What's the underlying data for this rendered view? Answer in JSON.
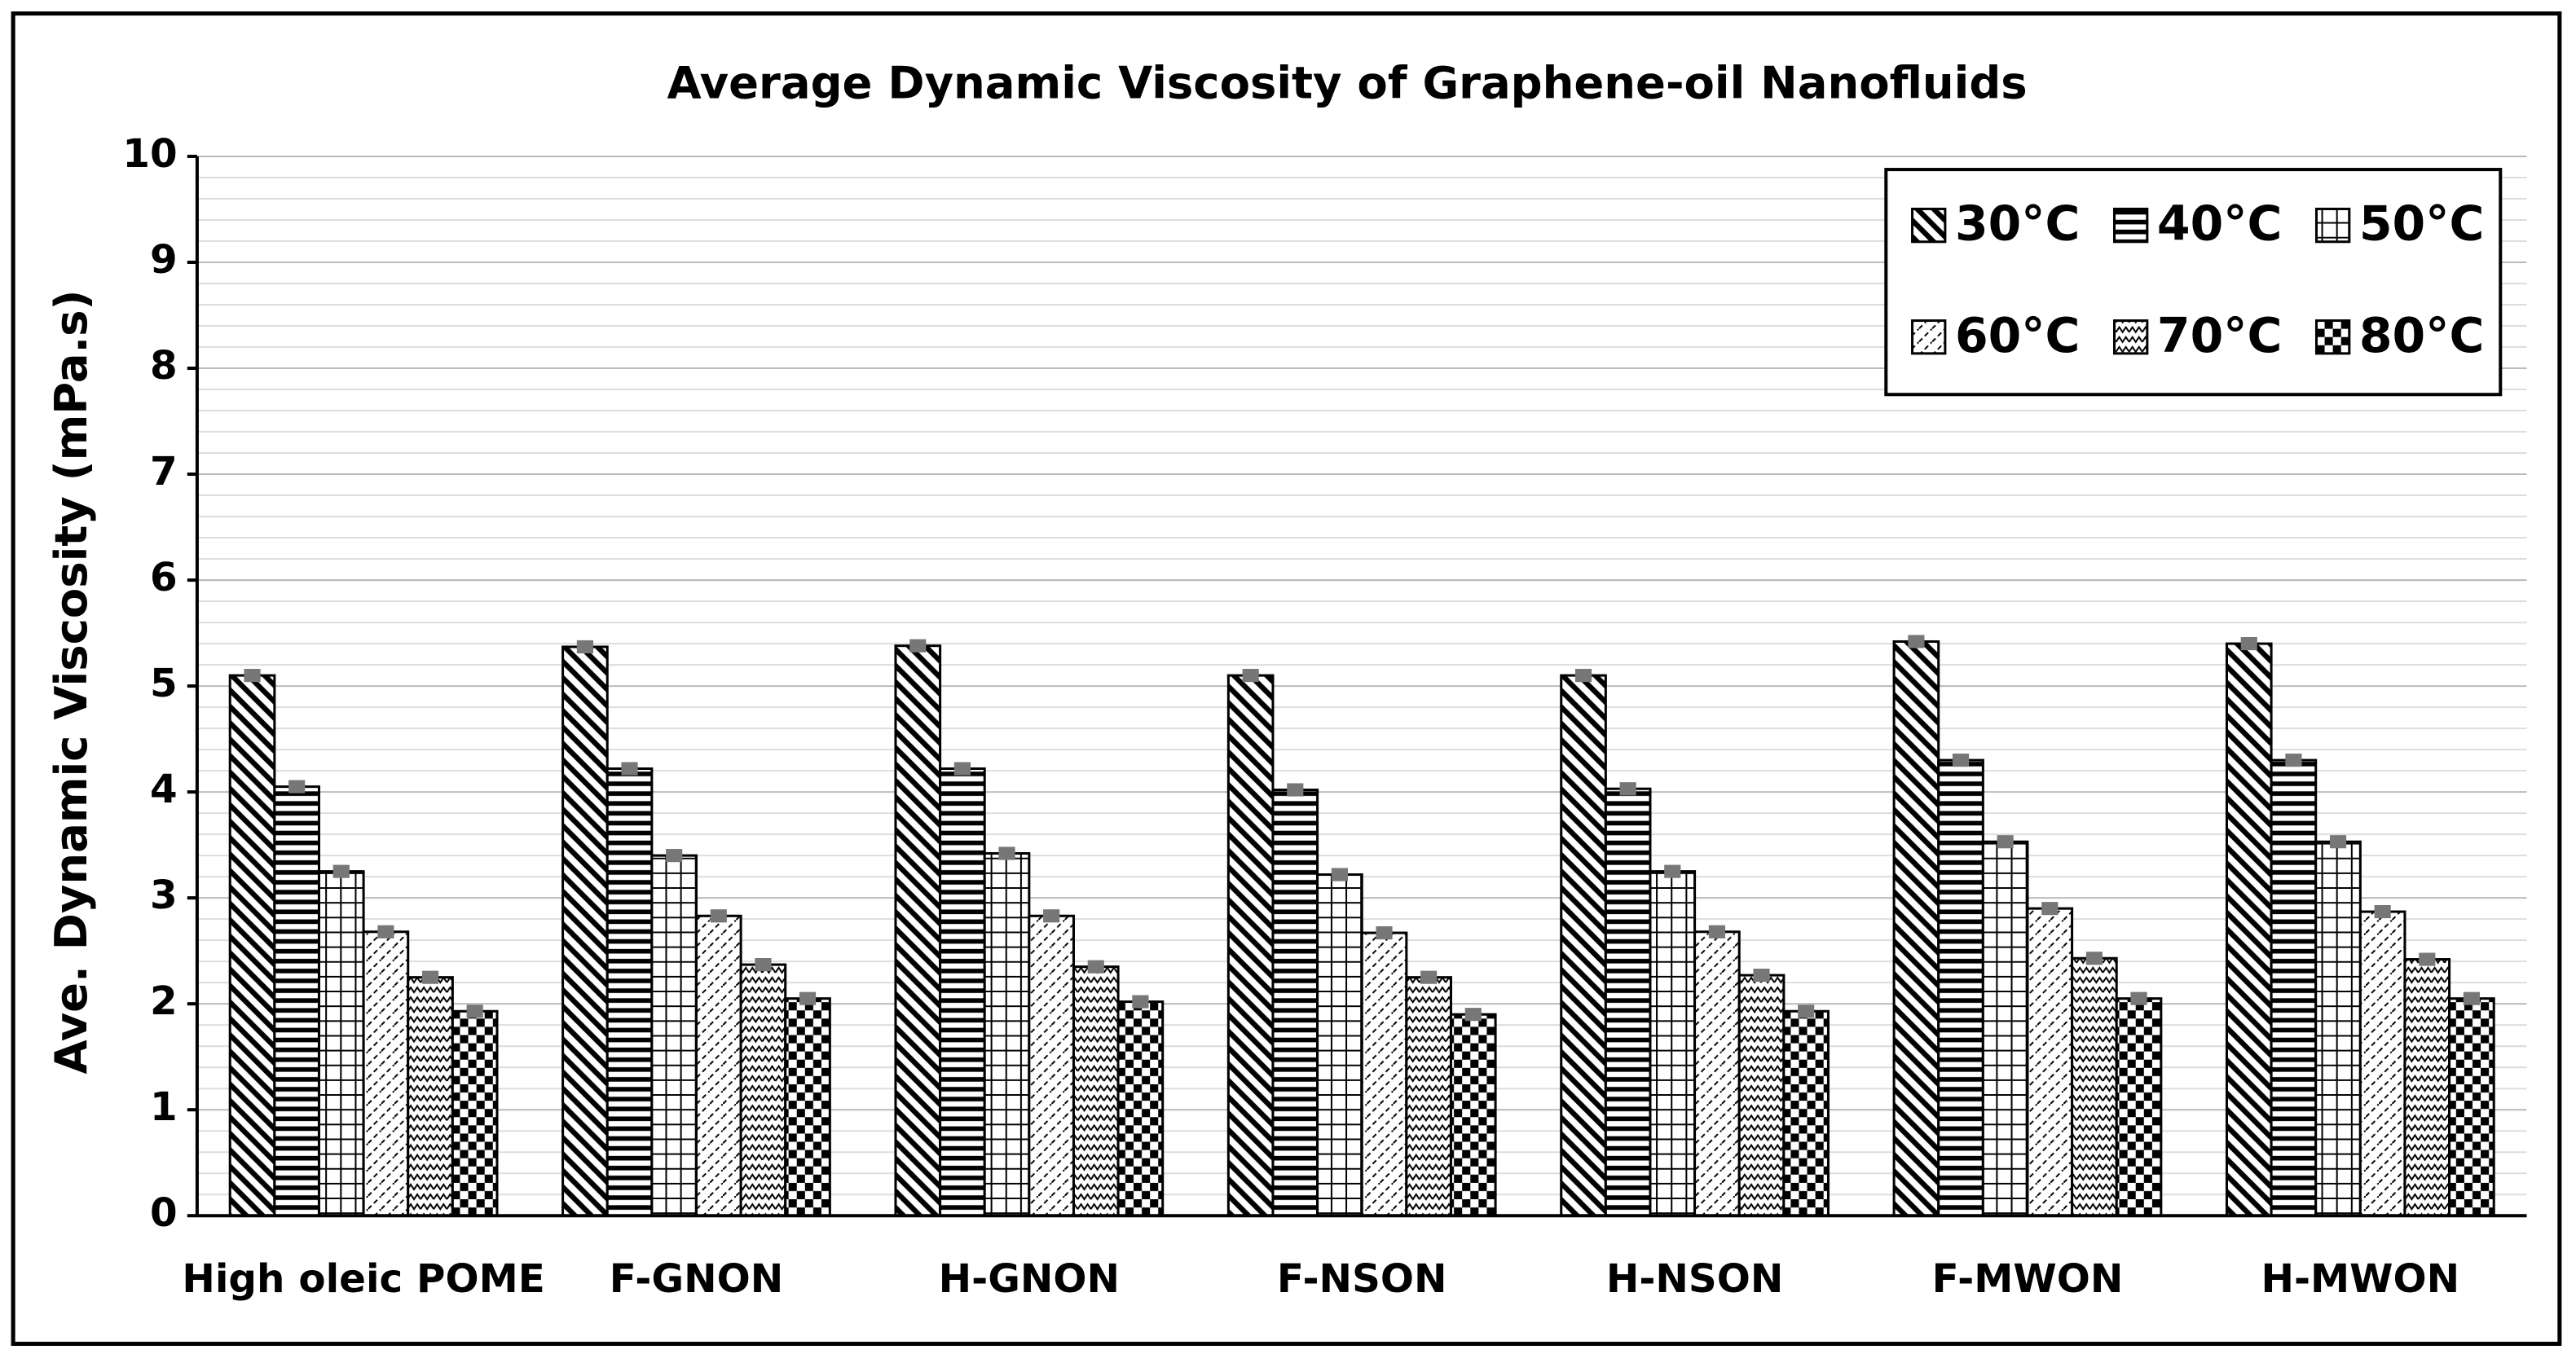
{
  "chart_data": {
    "type": "bar",
    "title": "Average Dynamic Viscosity of Graphene-oil Nanofluids",
    "y_label": "Ave. Dynamic Viscosity (mPa.s)",
    "categories": [
      "High oleic POME",
      "F-GNON",
      "H-GNON",
      "F-NSON",
      "H-NSON",
      "F-MWON",
      "H-MWON"
    ],
    "series": [
      {
        "name": "30°C",
        "pattern": "diag-back",
        "color": "#000000",
        "values": [
          5.1,
          5.37,
          5.38,
          5.1,
          5.1,
          5.42,
          5.4
        ]
      },
      {
        "name": "40°C",
        "pattern": "horizontal",
        "color": "#000000",
        "values": [
          4.05,
          4.22,
          4.22,
          4.02,
          4.03,
          4.3,
          4.3
        ]
      },
      {
        "name": "50°C",
        "pattern": "grid",
        "color": "#000000",
        "values": [
          3.25,
          3.4,
          3.42,
          3.22,
          3.25,
          3.53,
          3.53
        ]
      },
      {
        "name": "60°C",
        "pattern": "dashed-diag",
        "color": "#000000",
        "values": [
          2.68,
          2.83,
          2.83,
          2.67,
          2.68,
          2.9,
          2.87
        ]
      },
      {
        "name": "70°C",
        "pattern": "wave",
        "color": "#000000",
        "values": [
          2.25,
          2.37,
          2.35,
          2.25,
          2.27,
          2.43,
          2.42
        ]
      },
      {
        "name": "80°C",
        "pattern": "checker",
        "color": "#000000",
        "values": [
          1.93,
          2.05,
          2.02,
          1.9,
          1.93,
          2.05,
          2.05
        ]
      }
    ],
    "ylim": [
      0,
      10
    ],
    "yticks": [
      0,
      1,
      2,
      3,
      4,
      5,
      6,
      7,
      8,
      9,
      10
    ],
    "grid": true,
    "minor_grid": true,
    "legend_position": "top-right"
  }
}
